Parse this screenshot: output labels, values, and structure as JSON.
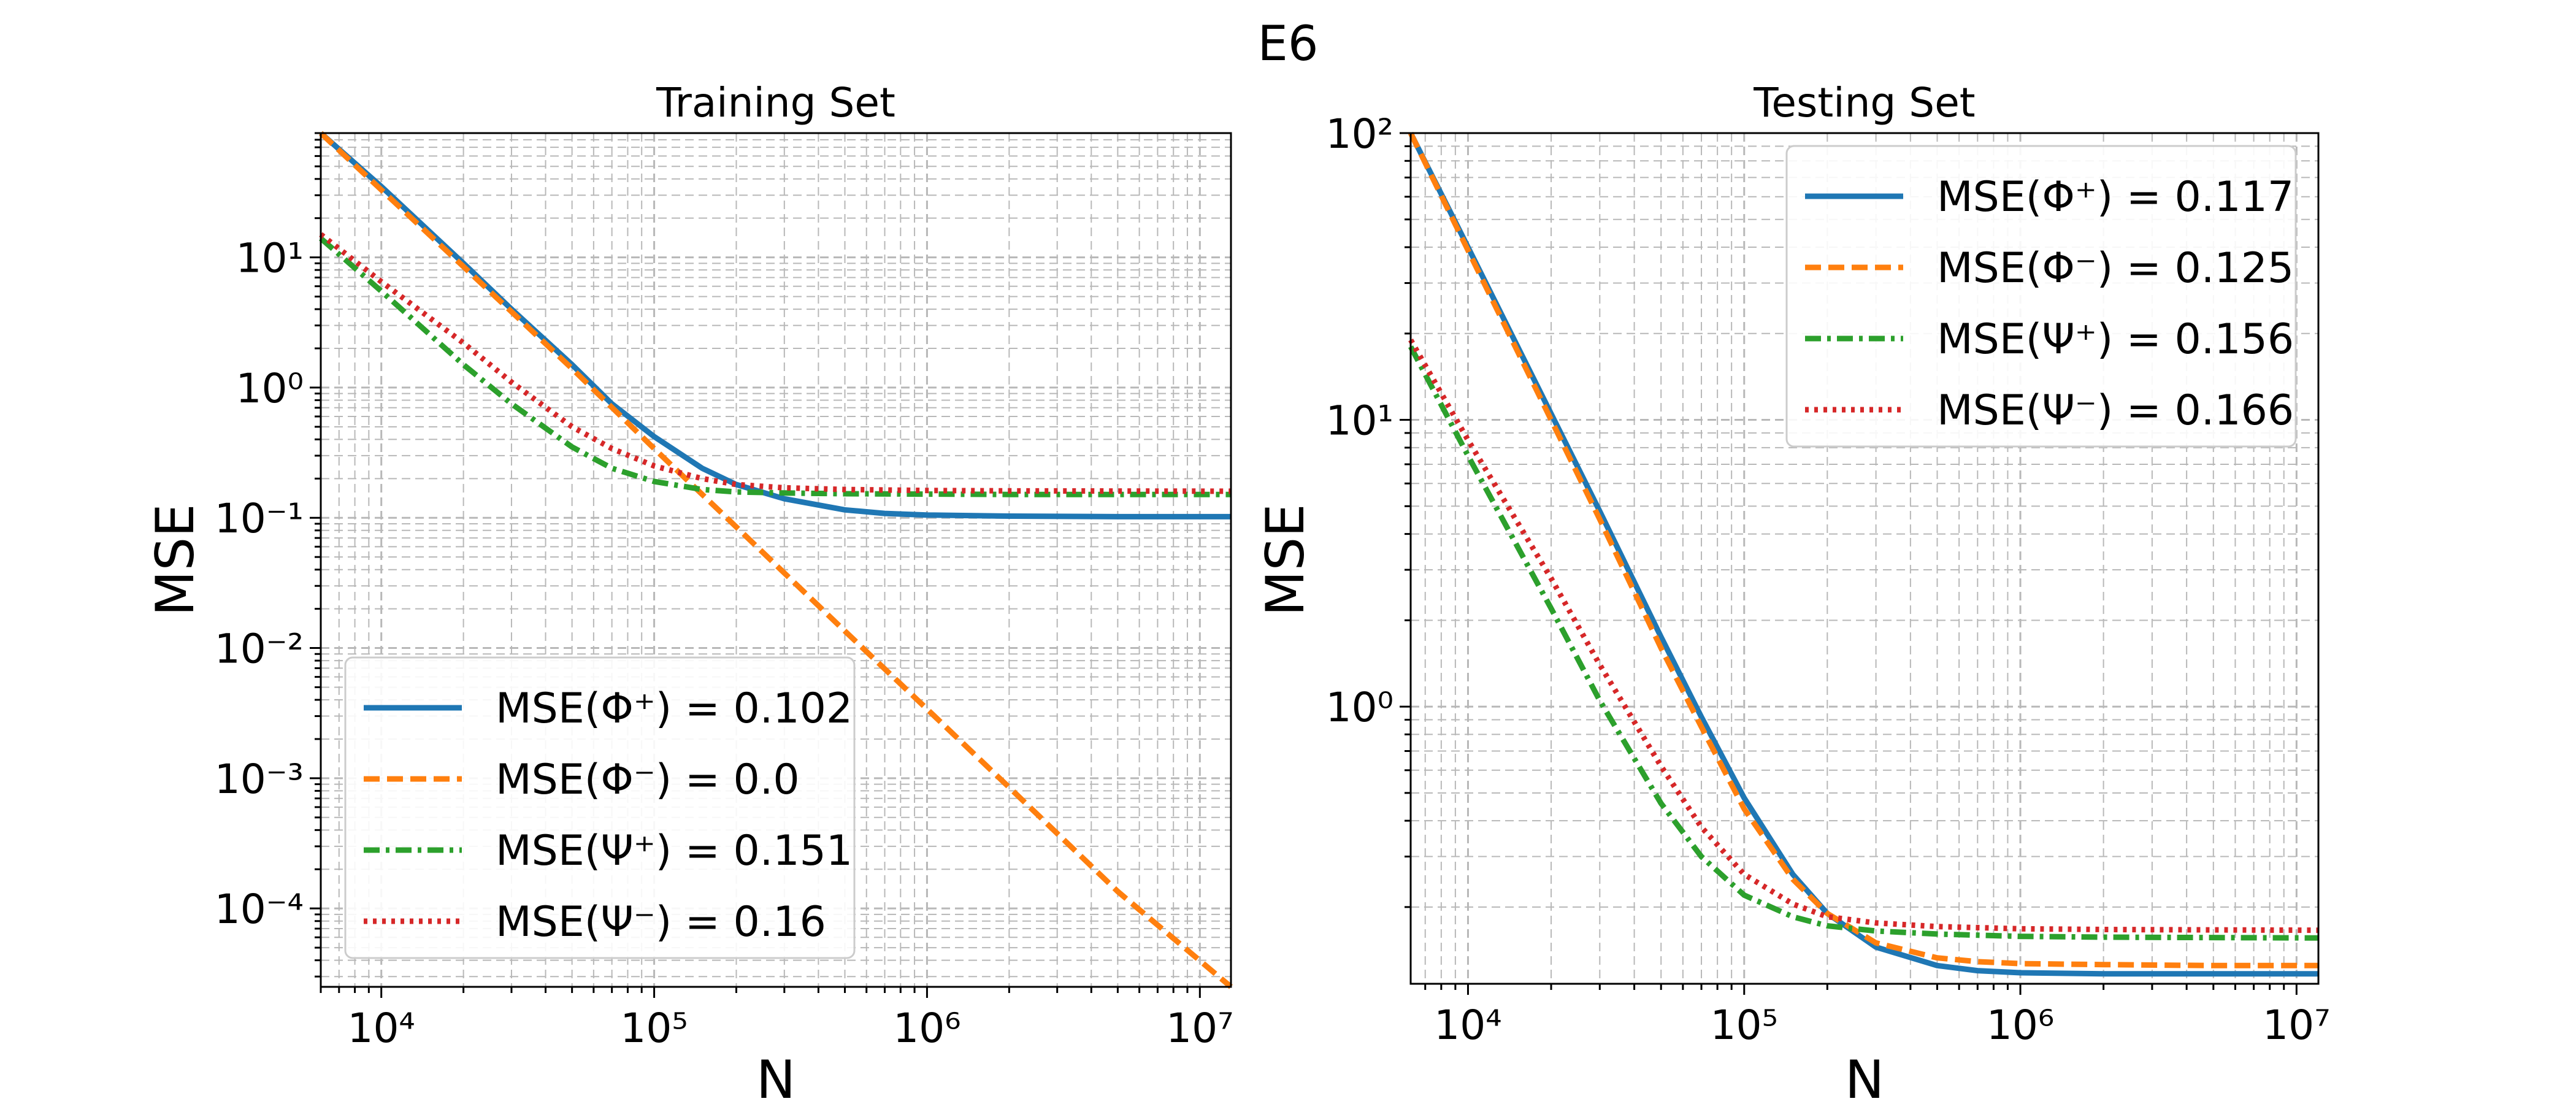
{
  "figure_title": "E6",
  "colors": {
    "phi_plus": "#1f77b4",
    "phi_minus": "#ff7f0e",
    "psi_plus": "#2ca02c",
    "psi_minus": "#d62728",
    "grid": "#b8b8b8"
  },
  "chart_data": [
    {
      "type": "line",
      "title": "Training Set",
      "xlabel": "N",
      "ylabel": "MSE",
      "xscale": "log",
      "yscale": "log",
      "xlim": [
        6000,
        13000000
      ],
      "ylim": [
        2.5e-05,
        90
      ],
      "xticks": [
        10000,
        100000,
        1000000,
        10000000
      ],
      "xtick_labels": [
        "10⁴",
        "10⁵",
        "10⁶",
        "10⁷"
      ],
      "yticks": [
        0.0001,
        0.001,
        0.01,
        0.1,
        1,
        10
      ],
      "ytick_labels": [
        "10⁻⁴",
        "10⁻³",
        "10⁻²",
        "10⁻¹",
        "10⁰",
        "10¹"
      ],
      "grid": "both (major and minor)",
      "legend_position": "lower-left",
      "series": [
        {
          "name": "MSE(Φ⁺) = 0.102",
          "color_key": "phi_plus",
          "style": "solid",
          "x": [
            6000,
            10000,
            20000,
            30000,
            50000,
            70000,
            100000,
            150000,
            200000,
            300000,
            500000,
            700000,
            1000000,
            2000000,
            5000000,
            13000000
          ],
          "y": [
            90,
            35,
            9,
            4,
            1.5,
            0.75,
            0.42,
            0.24,
            0.18,
            0.14,
            0.115,
            0.108,
            0.105,
            0.103,
            0.102,
            0.102
          ]
        },
        {
          "name": "MSE(Φ⁻) = 0.0",
          "color_key": "phi_minus",
          "style": "dashed",
          "x": [
            6000,
            10000,
            20000,
            50000,
            100000,
            200000,
            500000,
            1000000,
            2000000,
            5000000,
            13000000
          ],
          "y": [
            90,
            33,
            8.5,
            1.4,
            0.34,
            0.085,
            0.0135,
            0.0034,
            0.00085,
            0.000135,
            2.5e-05
          ]
        },
        {
          "name": "MSE(Ψ⁺) = 0.151",
          "color_key": "psi_plus",
          "style": "dashdot",
          "x": [
            6000,
            10000,
            20000,
            30000,
            50000,
            70000,
            100000,
            150000,
            200000,
            300000,
            500000,
            1000000,
            2000000,
            13000000
          ],
          "y": [
            14,
            5.5,
            1.5,
            0.75,
            0.35,
            0.24,
            0.19,
            0.165,
            0.158,
            0.155,
            0.153,
            0.152,
            0.151,
            0.151
          ]
        },
        {
          "name": "MSE(Ψ⁻) = 0.16",
          "color_key": "psi_minus",
          "style": "dotted",
          "x": [
            6000,
            10000,
            20000,
            30000,
            50000,
            70000,
            100000,
            150000,
            200000,
            300000,
            500000,
            1000000,
            2000000,
            13000000
          ],
          "y": [
            15,
            6.5,
            2.2,
            1.1,
            0.5,
            0.34,
            0.25,
            0.2,
            0.18,
            0.17,
            0.165,
            0.162,
            0.161,
            0.16
          ]
        }
      ]
    },
    {
      "type": "line",
      "title": "Testing Set",
      "xlabel": "N",
      "ylabel": "MSE",
      "xscale": "log",
      "yscale": "log",
      "xlim": [
        6200,
        12000000
      ],
      "ylim": [
        0.108,
        100
      ],
      "xticks": [
        10000,
        100000,
        1000000,
        10000000
      ],
      "xtick_labels": [
        "10⁴",
        "10⁵",
        "10⁶",
        "10⁷"
      ],
      "yticks": [
        1,
        10,
        100
      ],
      "ytick_labels": [
        "10⁰",
        "10¹",
        "10²"
      ],
      "grid": "both (major and minor)",
      "legend_position": "upper-right",
      "series": [
        {
          "name": "MSE(Φ⁺) = 0.117",
          "color_key": "phi_plus",
          "style": "solid",
          "x": [
            6200,
            10000,
            20000,
            30000,
            50000,
            70000,
            100000,
            150000,
            200000,
            300000,
            500000,
            700000,
            1000000,
            2000000,
            5000000,
            12000000
          ],
          "y": [
            100,
            40,
            10.5,
            4.8,
            1.75,
            0.92,
            0.48,
            0.26,
            0.19,
            0.145,
            0.125,
            0.12,
            0.118,
            0.117,
            0.117,
            0.117
          ]
        },
        {
          "name": "MSE(Φ⁻) = 0.125",
          "color_key": "phi_minus",
          "style": "dashed",
          "x": [
            6200,
            10000,
            20000,
            30000,
            50000,
            70000,
            100000,
            150000,
            200000,
            300000,
            500000,
            700000,
            1000000,
            2000000,
            5000000,
            12000000
          ],
          "y": [
            100,
            39,
            10,
            4.5,
            1.6,
            0.85,
            0.44,
            0.25,
            0.19,
            0.15,
            0.133,
            0.129,
            0.127,
            0.126,
            0.125,
            0.125
          ]
        },
        {
          "name": "MSE(Ψ⁺) = 0.156",
          "color_key": "psi_plus",
          "style": "dashdot",
          "x": [
            6200,
            10000,
            20000,
            30000,
            50000,
            70000,
            100000,
            150000,
            200000,
            300000,
            500000,
            1000000,
            2000000,
            12000000
          ],
          "y": [
            18,
            7.5,
            2.2,
            1.05,
            0.46,
            0.3,
            0.22,
            0.185,
            0.172,
            0.165,
            0.161,
            0.158,
            0.157,
            0.156
          ]
        },
        {
          "name": "MSE(Ψ⁻) = 0.166",
          "color_key": "psi_minus",
          "style": "dotted",
          "x": [
            6200,
            10000,
            20000,
            30000,
            50000,
            70000,
            100000,
            150000,
            200000,
            300000,
            500000,
            1000000,
            2000000,
            12000000
          ],
          "y": [
            19,
            8.5,
            2.8,
            1.4,
            0.62,
            0.38,
            0.26,
            0.205,
            0.185,
            0.176,
            0.171,
            0.168,
            0.167,
            0.166
          ]
        }
      ]
    }
  ]
}
